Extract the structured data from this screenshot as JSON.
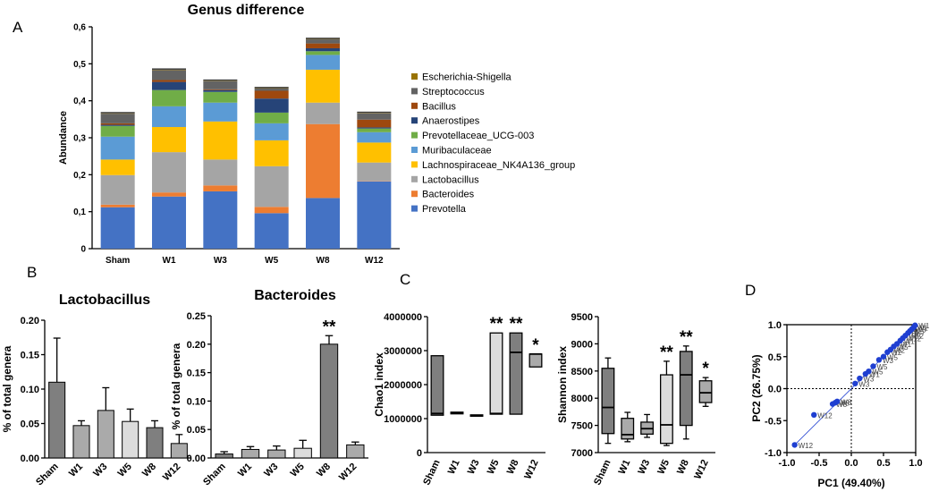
{
  "panel_labels": {
    "a": "A",
    "b": "B",
    "c": "C",
    "d": "D"
  },
  "chart_data": [
    {
      "id": "genus",
      "type": "bar",
      "stacked": true,
      "title": "Genus difference",
      "ylabel": "Abundance",
      "xlabel": "",
      "ylim": [
        0,
        0.6
      ],
      "yticks": [
        "0",
        "0,1",
        "0,2",
        "0,3",
        "0,4",
        "0,5",
        "0,6"
      ],
      "categories": [
        "Sham",
        "W1",
        "W3",
        "W5",
        "W8",
        "W12"
      ],
      "series": [
        {
          "name": "Prevotella",
          "color": "#4472C4",
          "values": [
            0.112,
            0.141,
            0.155,
            0.096,
            0.137,
            0.182
          ]
        },
        {
          "name": "Bacteroides",
          "color": "#ED7D31",
          "values": [
            0.007,
            0.011,
            0.016,
            0.017,
            0.2,
            0.001
          ]
        },
        {
          "name": "Lactobacillus",
          "color": "#A5A5A5",
          "values": [
            0.08,
            0.109,
            0.07,
            0.11,
            0.058,
            0.05
          ]
        },
        {
          "name": "Lachnospiraceae_NK4A136_group",
          "color": "#FFC000",
          "values": [
            0.042,
            0.068,
            0.103,
            0.07,
            0.089,
            0.054
          ]
        },
        {
          "name": "Muribaculaceae",
          "color": "#5B9BD5",
          "values": [
            0.062,
            0.056,
            0.051,
            0.046,
            0.04,
            0.028
          ]
        },
        {
          "name": "Prevotellaceae_UCG-003",
          "color": "#70AD47",
          "values": [
            0.029,
            0.044,
            0.029,
            0.029,
            0.01,
            0.01
          ]
        },
        {
          "name": "Anaerostipes",
          "color": "#264478",
          "values": [
            0.003,
            0.022,
            0.005,
            0.038,
            0.008,
            0.003
          ]
        },
        {
          "name": "Bacillus",
          "color": "#9E480E",
          "values": [
            0.004,
            0.005,
            0.002,
            0.021,
            0.013,
            0.021
          ]
        },
        {
          "name": "Streptococcus",
          "color": "#636363",
          "values": [
            0.026,
            0.027,
            0.022,
            0.006,
            0.011,
            0.017
          ]
        },
        {
          "name": "Escherichia-Shigella",
          "color": "#997300",
          "values": [
            0.001,
            0.001,
            0.001,
            0.001,
            0.001,
            0.001
          ]
        }
      ]
    },
    {
      "id": "lacto",
      "type": "bar",
      "title": "Lactobacillus",
      "ylabel": "% of total genera",
      "ylim": [
        0,
        0.2
      ],
      "yticks": [
        "0.00",
        "0.05",
        "0.10",
        "0.15",
        "0.20"
      ],
      "categories": [
        "Sham",
        "W1",
        "W3",
        "W5",
        "W8",
        "W12"
      ],
      "values": [
        0.11,
        0.047,
        0.069,
        0.053,
        0.044,
        0.021
      ],
      "errors": [
        0.064,
        0.007,
        0.033,
        0.018,
        0.01,
        0.013
      ],
      "colors": [
        "#7f7f7f",
        "#aaaaaa",
        "#aaaaaa",
        "#dcdcdc",
        "#7f7f7f",
        "#aaaaaa"
      ],
      "annotations": [
        "",
        "",
        "",
        "",
        "",
        ""
      ]
    },
    {
      "id": "bacter",
      "type": "bar",
      "title": "Bacteroides",
      "ylabel": "% of total genera",
      "ylim": [
        0,
        0.25
      ],
      "yticks": [
        "0.00",
        "0.05",
        "0.10",
        "0.15",
        "0.20",
        "0.25"
      ],
      "categories": [
        "Sham",
        "W1",
        "W3",
        "W5",
        "W8",
        "W12"
      ],
      "values": [
        0.007,
        0.015,
        0.014,
        0.017,
        0.2,
        0.023
      ],
      "errors": [
        0.004,
        0.005,
        0.007,
        0.014,
        0.015,
        0.005
      ],
      "colors": [
        "#7f7f7f",
        "#aaaaaa",
        "#aaaaaa",
        "#dcdcdc",
        "#7f7f7f",
        "#aaaaaa"
      ],
      "annotations": [
        "",
        "",
        "",
        "",
        "**",
        ""
      ]
    },
    {
      "id": "chao",
      "type": "box",
      "ylabel": "Chao1 index",
      "ylim": [
        0,
        4000000
      ],
      "yticks": [
        "0",
        "1000000",
        "2000000",
        "3000000",
        "4000000"
      ],
      "categories": [
        "Sham",
        "W1",
        "W3",
        "W5",
        "W8",
        "W12"
      ],
      "boxes": [
        {
          "min": 1100000,
          "q1": 1100000,
          "median": 1150000,
          "q3": 2850000,
          "max": 2850000
        },
        {
          "min": 1140000,
          "q1": 1140000,
          "median": 1170000,
          "q3": 1190000,
          "max": 1190000
        },
        {
          "min": 1080000,
          "q1": 1080000,
          "median": 1095000,
          "q3": 1110000,
          "max": 1110000
        },
        {
          "min": 1130000,
          "q1": 1130000,
          "median": 1150000,
          "q3": 3520000,
          "max": 3520000
        },
        {
          "min": 1130000,
          "q1": 1130000,
          "median": 2950000,
          "q3": 3520000,
          "max": 3520000
        },
        {
          "min": 2520000,
          "q1": 2520000,
          "median": 2900000,
          "q3": 2900000,
          "max": 2900000
        }
      ],
      "colors": [
        "#7f7f7f",
        "#aaaaaa",
        "#aaaaaa",
        "#dcdcdc",
        "#7f7f7f",
        "#aaaaaa"
      ],
      "annotations": [
        "",
        "",
        "",
        "**",
        "**",
        "*"
      ]
    },
    {
      "id": "shannon",
      "type": "box",
      "ylabel": "Shannon index",
      "ylim": [
        7000,
        9500
      ],
      "yticks": [
        "7000",
        "7500",
        "8000",
        "8500",
        "9000",
        "9500"
      ],
      "categories": [
        "Sham",
        "W1",
        "W3",
        "W5",
        "W8",
        "W12"
      ],
      "boxes": [
        {
          "min": 7170,
          "q1": 7350,
          "median": 7830,
          "q3": 8550,
          "max": 8740
        },
        {
          "min": 7200,
          "q1": 7250,
          "median": 7330,
          "q3": 7630,
          "max": 7740
        },
        {
          "min": 7280,
          "q1": 7340,
          "median": 7440,
          "q3": 7560,
          "max": 7700
        },
        {
          "min": 7130,
          "q1": 7170,
          "median": 7510,
          "q3": 8430,
          "max": 8680
        },
        {
          "min": 7250,
          "q1": 7500,
          "median": 8430,
          "q3": 8860,
          "max": 8960
        },
        {
          "min": 7850,
          "q1": 7920,
          "median": 8100,
          "q3": 8320,
          "max": 8380
        }
      ],
      "colors": [
        "#7f7f7f",
        "#aaaaaa",
        "#aaaaaa",
        "#dcdcdc",
        "#7f7f7f",
        "#aaaaaa"
      ],
      "annotations": [
        "",
        "",
        "",
        "**",
        "**",
        "*"
      ]
    },
    {
      "id": "pca",
      "type": "scatter",
      "xlabel": "PC1 (49.40%)",
      "ylabel": "PC2 (26.75%)",
      "xlim": [
        -1.0,
        1.0
      ],
      "ylim": [
        -1.0,
        1.0
      ],
      "xticks": [
        "-1.0",
        "-0.5",
        "0.0",
        "0.5",
        "1.0"
      ],
      "yticks": [
        "-1.0",
        "-0.5",
        "0.0",
        "0.5",
        "1.0"
      ],
      "color": "#1f3fd1",
      "points": [
        {
          "x": -0.88,
          "y": -0.88,
          "label": "W12"
        },
        {
          "x": -0.58,
          "y": -0.41,
          "label": "W12"
        },
        {
          "x": -0.29,
          "y": -0.24,
          "label": "W8"
        },
        {
          "x": -0.25,
          "y": -0.22,
          "label": "W8"
        },
        {
          "x": -0.22,
          "y": -0.2,
          "label": "W8"
        },
        {
          "x": 0.06,
          "y": 0.08,
          "label": "W3"
        },
        {
          "x": 0.13,
          "y": 0.16,
          "label": "W3"
        },
        {
          "x": 0.22,
          "y": 0.23,
          "label": "W1"
        },
        {
          "x": 0.27,
          "y": 0.27,
          "label": "W5"
        },
        {
          "x": 0.34,
          "y": 0.35,
          "label": "W5"
        },
        {
          "x": 0.43,
          "y": 0.45,
          "label": "W3"
        },
        {
          "x": 0.5,
          "y": 0.5,
          "label": "W5"
        },
        {
          "x": 0.56,
          "y": 0.57,
          "label": "W2"
        },
        {
          "x": 0.61,
          "y": 0.61,
          "label": "W2"
        },
        {
          "x": 0.66,
          "y": 0.66,
          "label": "W5"
        },
        {
          "x": 0.71,
          "y": 0.7,
          "label": "W1"
        },
        {
          "x": 0.76,
          "y": 0.75,
          "label": "W1"
        },
        {
          "x": 0.8,
          "y": 0.79,
          "label": "W12"
        },
        {
          "x": 0.84,
          "y": 0.83,
          "label": "W12"
        },
        {
          "x": 0.88,
          "y": 0.87,
          "label": "Sh"
        },
        {
          "x": 0.91,
          "y": 0.9,
          "label": "W5"
        },
        {
          "x": 0.94,
          "y": 0.93,
          "label": "W8"
        },
        {
          "x": 0.97,
          "y": 0.96,
          "label": "W1"
        },
        {
          "x": 0.99,
          "y": 0.99,
          "label": "W1"
        }
      ]
    }
  ]
}
